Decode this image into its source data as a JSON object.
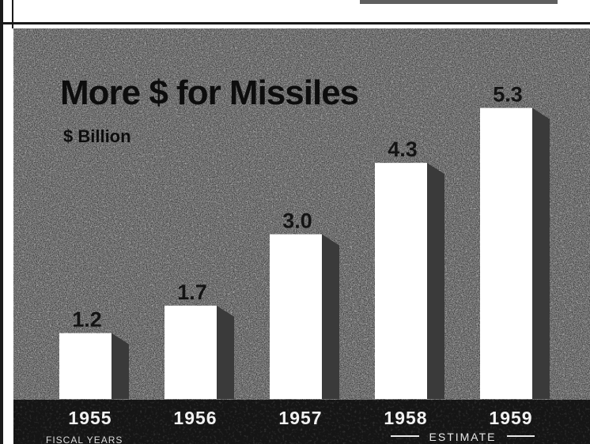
{
  "chart_data": {
    "type": "bar",
    "title": "More $ for Missiles",
    "ylabel": "$ Billion",
    "xlabel": "FISCAL YEARS",
    "categories": [
      "1955",
      "1956",
      "1957",
      "1958",
      "1959"
    ],
    "values": [
      1.2,
      1.7,
      3.0,
      4.3,
      5.3
    ],
    "value_labels": [
      "1.2",
      "1.7",
      "3.0",
      "4.3",
      "5.3"
    ],
    "ylim": [
      0,
      6
    ],
    "grid": false,
    "annotations": [
      {
        "text": "ESTIMATE",
        "applies_to": [
          "1958",
          "1959"
        ]
      }
    ],
    "colors": {
      "background": "#8a8a8a",
      "bar_face": "#ffffff",
      "bar_side": "#3a3a3a",
      "axis_band": "#151515"
    }
  }
}
